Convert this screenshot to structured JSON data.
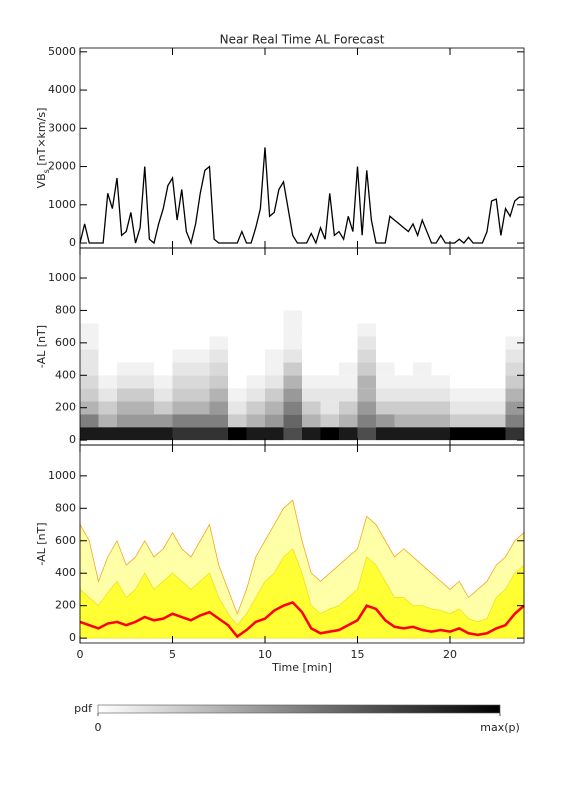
{
  "chart_data": [
    {
      "type": "line",
      "title": "Near Real Time AL Forecast",
      "ylabel_parts": [
        "VB",
        "s",
        " [nT×km/s]"
      ],
      "x": [
        0,
        0.25,
        0.5,
        0.75,
        1,
        1.25,
        1.5,
        1.75,
        2,
        2.25,
        2.5,
        2.75,
        3,
        3.25,
        3.5,
        3.75,
        4,
        4.25,
        4.5,
        4.75,
        5,
        5.25,
        5.5,
        5.75,
        6,
        6.25,
        6.5,
        6.75,
        7,
        7.25,
        7.5,
        7.75,
        8,
        8.25,
        8.5,
        8.75,
        9,
        9.25,
        9.5,
        9.75,
        10,
        10.25,
        10.5,
        10.75,
        11,
        11.25,
        11.5,
        11.75,
        12,
        12.25,
        12.5,
        12.75,
        13,
        13.25,
        13.5,
        13.75,
        14,
        14.25,
        14.5,
        14.75,
        15,
        15.25,
        15.5,
        15.75,
        16,
        16.25,
        16.5,
        16.75,
        17,
        17.25,
        17.5,
        17.75,
        18,
        18.25,
        18.5,
        18.75,
        19,
        19.25,
        19.5,
        19.75,
        20,
        20.25,
        20.5,
        20.75,
        21,
        21.25,
        21.5,
        21.75,
        22,
        22.25,
        22.5,
        22.75,
        23,
        23.25,
        23.5,
        23.75,
        24
      ],
      "series": [
        {
          "color": "#000000",
          "values": [
            0,
            500,
            0,
            0,
            0,
            0,
            1300,
            900,
            1700,
            200,
            300,
            800,
            0,
            400,
            2000,
            100,
            0,
            500,
            900,
            1500,
            1700,
            600,
            1400,
            300,
            0,
            500,
            1300,
            1900,
            2000,
            100,
            0,
            0,
            0,
            0,
            0,
            300,
            0,
            0,
            400,
            900,
            2500,
            700,
            800,
            1400,
            1600,
            900,
            200,
            0,
            0,
            0,
            250,
            0,
            400,
            100,
            1300,
            200,
            300,
            100,
            700,
            300,
            2000,
            200,
            1900,
            600,
            0,
            0,
            0,
            700,
            600,
            500,
            400,
            300,
            500,
            200,
            600,
            300,
            0,
            0,
            200,
            0,
            0,
            0,
            100,
            0,
            150,
            0,
            0,
            0,
            300,
            1100,
            1150,
            200,
            900,
            700,
            1100,
            1200,
            1200
          ]
        }
      ],
      "xlim": [
        0,
        24
      ],
      "xticks": [
        0,
        5,
        10,
        15,
        20
      ],
      "show_xtick_labels": false,
      "ylim": [
        -130,
        5100
      ],
      "yticks": [
        0,
        1000,
        2000,
        3000,
        4000,
        5000
      ]
    },
    {
      "type": "heatmap",
      "ylabel_parts": [
        "-AL [nT]"
      ],
      "x_bins": [
        0,
        1,
        2,
        3,
        4,
        5,
        6,
        7,
        8,
        9,
        10,
        11,
        12,
        13,
        14,
        15,
        16,
        17,
        18,
        19,
        20,
        21,
        22,
        23,
        24
      ],
      "y_bins": [
        0,
        80,
        160,
        240,
        320,
        400,
        480,
        560,
        640,
        720,
        800
      ],
      "z": [
        [
          0.9,
          0.9,
          0.9,
          0.9,
          0.9,
          0.8,
          0.8,
          0.8,
          1.0,
          0.9,
          0.9,
          0.7,
          0.9,
          1.0,
          0.9,
          0.7,
          0.9,
          0.9,
          0.9,
          0.9,
          1.0,
          1.0,
          1.0,
          0.8
        ],
        [
          0.5,
          0.3,
          0.4,
          0.4,
          0.4,
          0.5,
          0.5,
          0.5,
          0.2,
          0.3,
          0.4,
          0.6,
          0.3,
          0.2,
          0.3,
          0.5,
          0.4,
          0.3,
          0.3,
          0.3,
          0.2,
          0.2,
          0.2,
          0.5
        ],
        [
          0.3,
          0.2,
          0.3,
          0.3,
          0.2,
          0.3,
          0.3,
          0.4,
          0.1,
          0.2,
          0.3,
          0.5,
          0.2,
          0.1,
          0.2,
          0.4,
          0.2,
          0.2,
          0.2,
          0.2,
          0.1,
          0.1,
          0.1,
          0.4
        ],
        [
          0.2,
          0.1,
          0.2,
          0.2,
          0.1,
          0.2,
          0.2,
          0.3,
          0.05,
          0.1,
          0.2,
          0.4,
          0.1,
          0.1,
          0.1,
          0.3,
          0.1,
          0.1,
          0.1,
          0.1,
          0.05,
          0.05,
          0.05,
          0.3
        ],
        [
          0.15,
          0.05,
          0.1,
          0.1,
          0.05,
          0.15,
          0.15,
          0.2,
          0,
          0.05,
          0.1,
          0.3,
          0.05,
          0.05,
          0.05,
          0.3,
          0.05,
          0.05,
          0.05,
          0.05,
          0,
          0,
          0,
          0.2
        ],
        [
          0.1,
          0,
          0.05,
          0.05,
          0,
          0.1,
          0.1,
          0.15,
          0,
          0,
          0.05,
          0.2,
          0,
          0,
          0.05,
          0.2,
          0.05,
          0,
          0.05,
          0,
          0,
          0,
          0,
          0.15
        ],
        [
          0.1,
          0,
          0,
          0,
          0,
          0.05,
          0.05,
          0.1,
          0,
          0,
          0.05,
          0.1,
          0,
          0,
          0,
          0.15,
          0,
          0,
          0,
          0,
          0,
          0,
          0,
          0.1
        ],
        [
          0.05,
          0,
          0,
          0,
          0,
          0,
          0,
          0.05,
          0,
          0,
          0,
          0.05,
          0,
          0,
          0,
          0.1,
          0,
          0,
          0,
          0,
          0,
          0,
          0,
          0.05
        ],
        [
          0.05,
          0,
          0,
          0,
          0,
          0,
          0,
          0,
          0,
          0,
          0,
          0.05,
          0,
          0,
          0,
          0.05,
          0,
          0,
          0,
          0,
          0,
          0,
          0,
          0
        ],
        [
          0,
          0,
          0,
          0,
          0,
          0,
          0,
          0,
          0,
          0,
          0,
          0.05,
          0,
          0,
          0,
          0,
          0,
          0,
          0,
          0,
          0,
          0,
          0,
          0
        ]
      ],
      "colormap": [
        "#ffffff",
        "#000000"
      ],
      "zlim": [
        0,
        1
      ],
      "colorbar": {
        "label": "pdf",
        "ticks": [
          0,
          {
            "value": 1,
            "label": "max(p)"
          }
        ]
      },
      "xlim": [
        0,
        24
      ],
      "xticks": [
        0,
        5,
        10,
        15,
        20
      ],
      "show_xtick_labels": false,
      "ylim": [
        -30,
        1185
      ],
      "yticks": [
        0,
        200,
        400,
        600,
        800,
        1000
      ]
    },
    {
      "type": "band",
      "ylabel_parts": [
        "-AL [nT]"
      ],
      "xlabel": "Time [min]",
      "x": [
        0,
        0.5,
        1,
        1.5,
        2,
        2.5,
        3,
        3.5,
        4,
        4.5,
        5,
        5.5,
        6,
        6.5,
        7,
        7.5,
        8,
        8.5,
        9,
        9.5,
        10,
        10.5,
        11,
        11.5,
        12,
        12.5,
        13,
        13.5,
        14,
        14.5,
        15,
        15.5,
        16,
        16.5,
        17,
        17.5,
        18,
        18.5,
        19,
        19.5,
        20,
        20.5,
        21,
        21.5,
        22,
        22.5,
        23,
        23.5,
        24
      ],
      "series": [
        {
          "color": "#f5a623",
          "fill": "#ffffa8",
          "values": [
            700,
            600,
            350,
            500,
            600,
            450,
            500,
            600,
            500,
            550,
            650,
            550,
            500,
            600,
            700,
            450,
            300,
            150,
            300,
            500,
            600,
            700,
            800,
            850,
            600,
            400,
            350,
            400,
            450,
            500,
            550,
            750,
            700,
            600,
            500,
            550,
            500,
            450,
            400,
            350,
            300,
            350,
            250,
            300,
            350,
            450,
            500,
            600,
            650
          ]
        },
        {
          "color": "#f0e020",
          "fill": "#ffff33",
          "values": [
            300,
            250,
            200,
            280,
            350,
            250,
            300,
            400,
            300,
            350,
            400,
            350,
            300,
            350,
            400,
            250,
            150,
            80,
            150,
            250,
            350,
            400,
            500,
            550,
            400,
            200,
            150,
            180,
            200,
            250,
            300,
            500,
            450,
            350,
            250,
            250,
            200,
            200,
            180,
            170,
            150,
            180,
            120,
            100,
            120,
            250,
            300,
            400,
            450
          ]
        },
        {
          "color": "#ff0000",
          "values": [
            100,
            80,
            60,
            90,
            100,
            80,
            100,
            130,
            110,
            120,
            150,
            130,
            110,
            140,
            160,
            120,
            80,
            10,
            50,
            100,
            120,
            170,
            200,
            220,
            160,
            60,
            30,
            40,
            50,
            80,
            110,
            200,
            180,
            110,
            70,
            60,
            70,
            50,
            40,
            50,
            40,
            60,
            30,
            20,
            30,
            60,
            80,
            150,
            200
          ]
        }
      ],
      "xlim": [
        0,
        24
      ],
      "xticks": [
        0,
        5,
        10,
        15,
        20
      ],
      "show_xtick_labels": true,
      "ylim": [
        -30,
        1190
      ],
      "yticks": [
        0,
        200,
        400,
        600,
        800,
        1000
      ]
    }
  ]
}
